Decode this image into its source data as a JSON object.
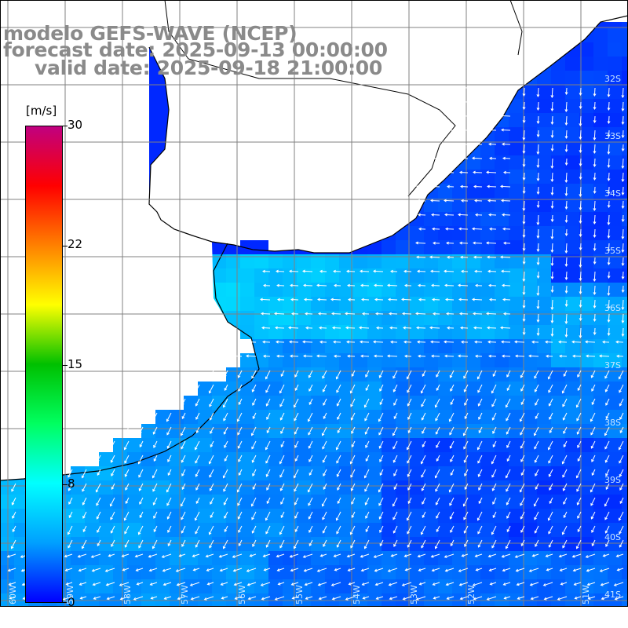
{
  "title": {
    "line1": "modelo GEFS-WAVE (NCEP)",
    "line2": "forecast date: 2025-09-13 00:00:00",
    "line3": "valid date: 2025-09-18 21:00:00"
  },
  "colorbar": {
    "unit": "[m/s]",
    "ticks": [
      "30",
      "22",
      "15",
      "8",
      "0"
    ],
    "tick_values": [
      30,
      22,
      15,
      8,
      0
    ],
    "range": [
      0,
      30
    ],
    "colors": [
      "#0000ff",
      "#00a0ff",
      "#00ffff",
      "#00ff60",
      "#00c000",
      "#ffff00",
      "#ff8000",
      "#ff0000",
      "#c00080"
    ]
  },
  "map": {
    "region": "South Atlantic off Uruguay / Argentina",
    "lat_labels": [
      "32S",
      "33S",
      "34S",
      "35S",
      "36S",
      "37S",
      "38S",
      "39S",
      "40S",
      "41S"
    ],
    "lon_labels": [
      "60W",
      "59W",
      "58W",
      "57W",
      "56W",
      "55W",
      "54W",
      "53W",
      "52W",
      "51W"
    ],
    "land_color": "#ffffff",
    "coast_color": "#000000",
    "grid_color": "#808080",
    "arrow_color": "#ffffff"
  }
}
